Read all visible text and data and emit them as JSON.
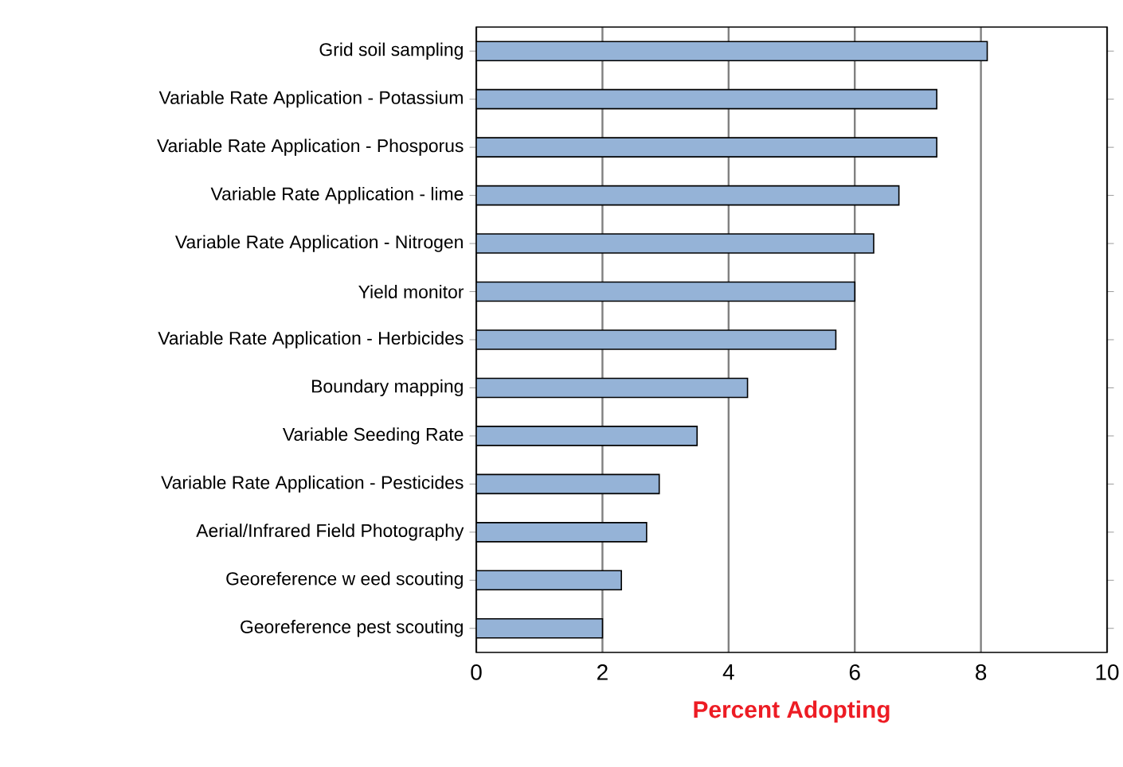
{
  "chart_data": {
    "type": "bar",
    "orientation": "horizontal",
    "xlabel": "Percent Adopting",
    "categories": [
      "Grid soil sampling",
      "Variable Rate Application - Potassium",
      "Variable Rate Application - Phosporus",
      "Variable Rate Application - lime",
      "Variable Rate Application - Nitrogen",
      "Yield monitor",
      "Variable Rate Application - Herbicides",
      "Boundary mapping",
      "Variable Seeding Rate",
      "Variable Rate Application - Pesticides",
      "Aerial/Infrared Field Photography",
      "Georeference w eed scouting",
      "Georeference pest scouting"
    ],
    "values": [
      8.1,
      7.3,
      7.3,
      6.7,
      6.3,
      6.0,
      5.7,
      4.3,
      3.5,
      2.9,
      2.7,
      2.3,
      2.0
    ],
    "color": "#95b3d7",
    "xlim": [
      0,
      10
    ],
    "xticks": [
      0,
      2,
      4,
      6,
      8,
      10
    ],
    "grid": "x"
  }
}
